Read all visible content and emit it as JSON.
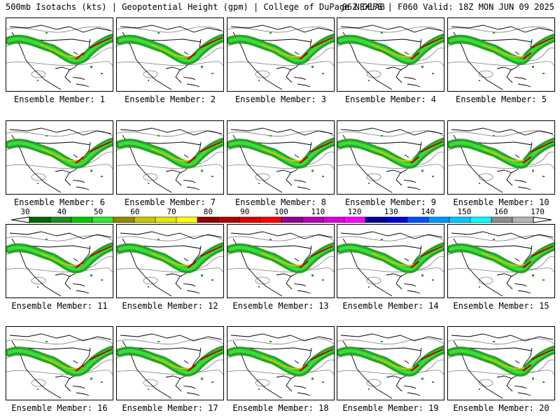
{
  "header": {
    "left": "500mb Isotachs (kts) | Geopotential Height (gpm) | College of DuPage NEXLAB",
    "right": "06Z GEFS | F060 Valid: 18Z MON JUN 09 2025"
  },
  "caption_prefix": "Ensemble Member:",
  "members": [
    {
      "label": "Ensemble Member: 1"
    },
    {
      "label": "Ensemble Member: 2"
    },
    {
      "label": "Ensemble Member: 3"
    },
    {
      "label": "Ensemble Member: 4"
    },
    {
      "label": "Ensemble Member: 5"
    },
    {
      "label": "Ensemble Member: 6"
    },
    {
      "label": "Ensemble Member: 7"
    },
    {
      "label": "Ensemble Member: 8"
    },
    {
      "label": "Ensemble Member: 9"
    },
    {
      "label": "Ensemble Member: 10"
    },
    {
      "label": "Ensemble Member: 11"
    },
    {
      "label": "Ensemble Member: 12"
    },
    {
      "label": "Ensemble Member: 13"
    },
    {
      "label": "Ensemble Member: 14"
    },
    {
      "label": "Ensemble Member: 15"
    },
    {
      "label": "Ensemble Member: 16"
    },
    {
      "label": "Ensemble Member: 17"
    },
    {
      "label": "Ensemble Member: 18"
    },
    {
      "label": "Ensemble Member: 19"
    },
    {
      "label": "Ensemble Member: 20"
    }
  ],
  "colorbar": {
    "ticks": [
      "30",
      "40",
      "50",
      "60",
      "70",
      "80",
      "90",
      "100",
      "110",
      "120",
      "130",
      "140",
      "150",
      "160",
      "170"
    ],
    "colors": [
      "#006400",
      "#1e8c1e",
      "#00c800",
      "#32e632",
      "#8c8c00",
      "#c8c800",
      "#e6e600",
      "#ffff00",
      "#8c0000",
      "#b40000",
      "#dc0000",
      "#ff0000",
      "#8c008c",
      "#b400b4",
      "#dc00dc",
      "#ff00ff",
      "#00008c",
      "#0000dc",
      "#0050ff",
      "#0096ff",
      "#00c8ff",
      "#00ffff",
      "#8c8c8c",
      "#b4b4b4"
    ]
  },
  "colors": {
    "jet_green": "#1ea01e",
    "jet_light": "#3cdc3c",
    "jet_yellow": "#c8c800",
    "jet_red": "#b40000",
    "height_contour": "#7a7a7a",
    "coastline": "#000000"
  }
}
